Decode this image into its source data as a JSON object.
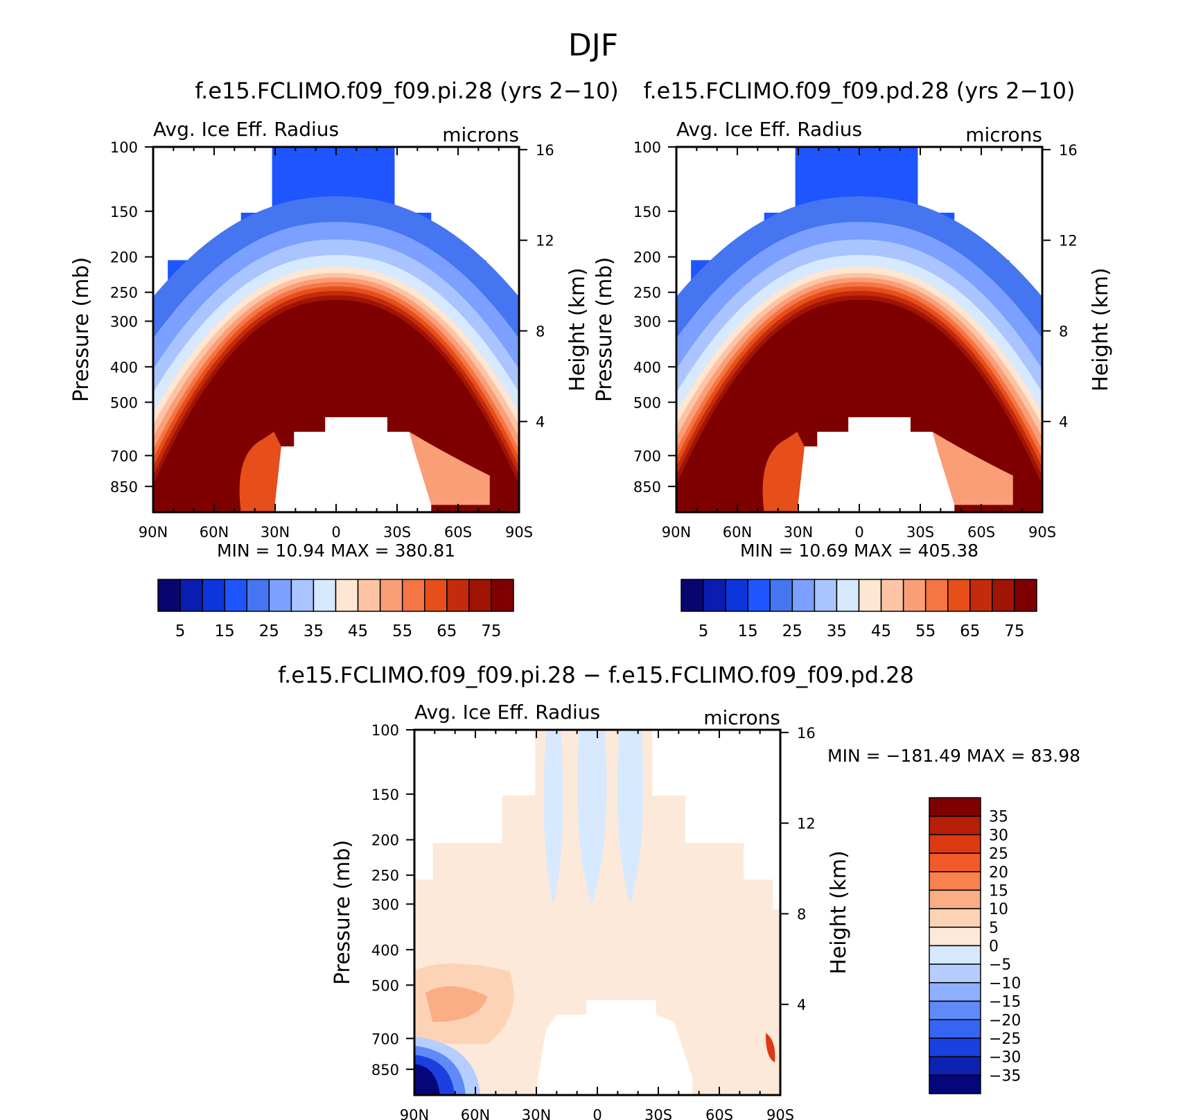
{
  "figure_title": "DJF",
  "chart_data": [
    {
      "type": "heatmap",
      "id": "pi",
      "title": "f.e15.FCLIMO.f09_f09.pi.28 (yrs 2−10)",
      "left_label": "Avg. Ice Eff. Radius",
      "right_label": "microns",
      "ylabel": "Pressure (mb)",
      "y2label": "Height (km)",
      "x_ticks": [
        "90N",
        "60N",
        "30N",
        "0",
        "30S",
        "60S",
        "90S"
      ],
      "y_ticks": [
        "100",
        "150",
        "200",
        "250",
        "300",
        "400",
        "500",
        "700",
        "850"
      ],
      "y_tick_values": [
        100,
        150,
        200,
        250,
        300,
        400,
        500,
        700,
        850
      ],
      "y2_ticks": [
        "16",
        "12",
        "8",
        "4"
      ],
      "y2_tick_values": [
        16,
        12,
        8,
        4
      ],
      "ylim_mb": [
        100,
        1000
      ],
      "xlim_deg": [
        90,
        -90
      ],
      "min_text": "MIN =   10.94   MAX = 380.81",
      "min": 10.94,
      "max": 380.81,
      "profile_note": "max ~ near 400-600 mb in tropics, decreasing with altitude",
      "colorbar": {
        "labels": [
          "5",
          "15",
          "25",
          "35",
          "45",
          "55",
          "65",
          "75"
        ],
        "levels": [
          5,
          10,
          15,
          20,
          25,
          30,
          35,
          40,
          45,
          50,
          55,
          60,
          65,
          70,
          75
        ],
        "colors": [
          "#06066e",
          "#0a1db0",
          "#0d35dc",
          "#1e55ff",
          "#4575f0",
          "#7ba0ff",
          "#aac4ff",
          "#d6e9ff",
          "#fde6d2",
          "#fcc4a4",
          "#fa9e78",
          "#f57545",
          "#e64e1a",
          "#c42b0d",
          "#a01404",
          "#7f0000"
        ]
      }
    },
    {
      "type": "heatmap",
      "id": "pd",
      "title": "f.e15.FCLIMO.f09_f09.pd.28 (yrs 2−10)",
      "left_label": "Avg. Ice Eff. Radius",
      "right_label": "microns",
      "ylabel": "Pressure (mb)",
      "y2label": "Height (km)",
      "x_ticks": [
        "90N",
        "60N",
        "30N",
        "0",
        "30S",
        "60S",
        "90S"
      ],
      "y_ticks": [
        "100",
        "150",
        "200",
        "250",
        "300",
        "400",
        "500",
        "700",
        "850"
      ],
      "y_tick_values": [
        100,
        150,
        200,
        250,
        300,
        400,
        500,
        700,
        850
      ],
      "y2_ticks": [
        "16",
        "12",
        "8",
        "4"
      ],
      "y2_tick_values": [
        16,
        12,
        8,
        4
      ],
      "ylim_mb": [
        100,
        1000
      ],
      "xlim_deg": [
        90,
        -90
      ],
      "min_text": "MIN =   10.69   MAX = 405.38",
      "min": 10.69,
      "max": 405.38,
      "colorbar": {
        "labels": [
          "5",
          "15",
          "25",
          "35",
          "45",
          "55",
          "65",
          "75"
        ],
        "levels": [
          5,
          10,
          15,
          20,
          25,
          30,
          35,
          40,
          45,
          50,
          55,
          60,
          65,
          70,
          75
        ],
        "colors": [
          "#06066e",
          "#0a1db0",
          "#0d35dc",
          "#1e55ff",
          "#4575f0",
          "#7ba0ff",
          "#aac4ff",
          "#d6e9ff",
          "#fde6d2",
          "#fcc4a4",
          "#fa9e78",
          "#f57545",
          "#e64e1a",
          "#c42b0d",
          "#a01404",
          "#7f0000"
        ]
      }
    },
    {
      "type": "heatmap",
      "id": "diff",
      "title": "f.e15.FCLIMO.f09_f09.pi.28 − f.e15.FCLIMO.f09_f09.pd.28",
      "left_label": "Avg. Ice Eff. Radius",
      "right_label": "microns",
      "ylabel": "Pressure (mb)",
      "y2label": "Height (km)",
      "x_ticks": [
        "90N",
        "60N",
        "30N",
        "0",
        "30S",
        "60S",
        "90S"
      ],
      "y_ticks": [
        "100",
        "150",
        "200",
        "250",
        "300",
        "400",
        "500",
        "700",
        "850"
      ],
      "y_tick_values": [
        100,
        150,
        200,
        250,
        300,
        400,
        500,
        700,
        850
      ],
      "y2_ticks": [
        "16",
        "12",
        "8",
        "4"
      ],
      "y2_tick_values": [
        16,
        12,
        8,
        4
      ],
      "ylim_mb": [
        100,
        1000
      ],
      "xlim_deg": [
        90,
        -90
      ],
      "min_text": "MIN = −181.49   MAX =   83.98",
      "min": -181.49,
      "max": 83.98,
      "colorbar": {
        "labels": [
          "35",
          "30",
          "25",
          "20",
          "15",
          "10",
          "5",
          "0",
          "−5",
          "−10",
          "−15",
          "−20",
          "−25",
          "−30",
          "−35"
        ],
        "levels": [
          35,
          30,
          25,
          20,
          15,
          10,
          5,
          0,
          -5,
          -10,
          -15,
          -20,
          -25,
          -30,
          -35
        ],
        "colors": [
          "#7f0000",
          "#b81e06",
          "#dd3a12",
          "#f25a2a",
          "#f9824e",
          "#fbad86",
          "#fdd3b6",
          "#fde9d9",
          "#d6e9ff",
          "#b5ceff",
          "#8fb0ff",
          "#5f8af7",
          "#3565f2",
          "#1b40e0",
          "#0c22b0",
          "#05067a"
        ]
      }
    }
  ]
}
